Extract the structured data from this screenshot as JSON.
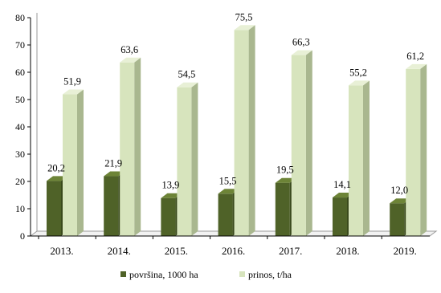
{
  "chart_data": {
    "type": "bar",
    "categories": [
      "2013.",
      "2014.",
      "2015.",
      "2016.",
      "2017.",
      "2018.",
      "2019."
    ],
    "series": [
      {
        "name": "površina, 1000 ha",
        "values": [
          20.2,
          21.9,
          13.9,
          15.5,
          19.5,
          14.1,
          12.0
        ],
        "labels": [
          "20,2",
          "21,9",
          "13,9",
          "15,5",
          "19,5",
          "14,1",
          "12,0"
        ],
        "color": "#4f6228",
        "color_side": "#3a4a1c",
        "color_top": "#6d8437"
      },
      {
        "name": "prinos, t/ha",
        "values": [
          51.9,
          63.6,
          54.5,
          75.5,
          66.3,
          55.2,
          61.2
        ],
        "labels": [
          "51,9",
          "63,6",
          "54,5",
          "75,5",
          "66,3",
          "55,2",
          "61,2"
        ],
        "color": "#d7e4bd",
        "color_side": "#a9b78f",
        "color_top": "#e8f0d6"
      }
    ],
    "yticks": [
      "0",
      "10",
      "20",
      "30",
      "40",
      "50",
      "60",
      "70",
      "80"
    ],
    "ylim": [
      0,
      80
    ],
    "grid": false,
    "legend_position": "bottom",
    "three_d": true
  }
}
